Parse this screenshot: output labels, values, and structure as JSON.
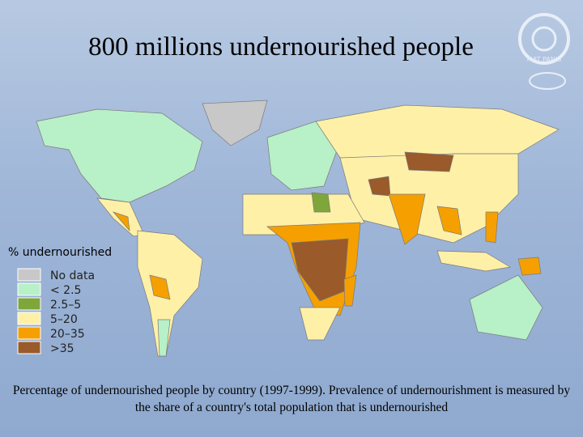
{
  "title": "800 millions undernourished people",
  "logo_text": "FIAT PANIS",
  "legend": {
    "title": "% undernourished",
    "items": [
      {
        "label": "No data",
        "color": "#c8c8c8"
      },
      {
        "label": "< 2.5",
        "color": "#b8f0c8"
      },
      {
        "label": "2.5–5",
        "color": "#7fa63a"
      },
      {
        "label": "5–20",
        "color": "#fff0a8"
      },
      {
        "label": "20–35",
        "color": "#f5a000"
      },
      {
        "label": ">35",
        "color": "#9a5a2a"
      }
    ]
  },
  "caption": "Percentage of undernourished people by country (1997-1999). Prevalence of undernourishment is measured by the share of a country's total population that is undernourished"
}
